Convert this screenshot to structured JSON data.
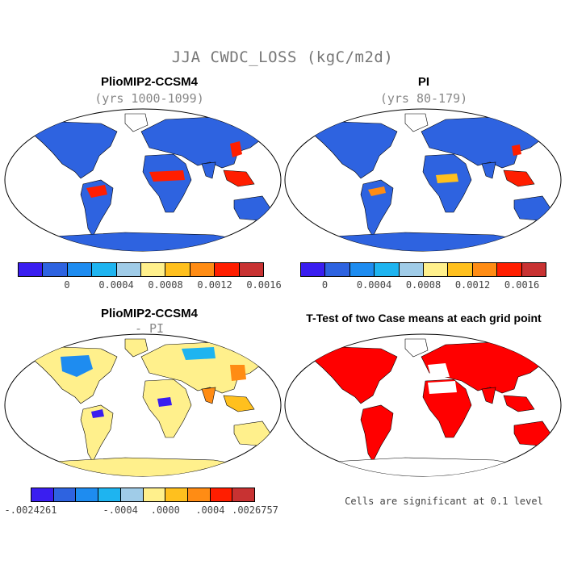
{
  "title": "JJA CWDC_LOSS (kgC/m2d)",
  "panels": [
    {
      "title": "PlioMIP2-CCSM4",
      "subtitle": "(yrs 1000-1099)"
    },
    {
      "title": "PI",
      "subtitle": "(yrs 80-179)"
    },
    {
      "title": "PlioMIP2-CCSM4",
      "subtitle": "- PI"
    },
    {
      "title": "T-Test of two Case means at each grid point",
      "subtitle": ""
    }
  ],
  "colorbar_top": {
    "colors": [
      "#3a1ef0",
      "#2e63e0",
      "#1e8cf0",
      "#1eb4f0",
      "#a0cce8",
      "#fff08c",
      "#ffc01e",
      "#ff8c14",
      "#ff1e00",
      "#c83232"
    ],
    "labels": [
      "0",
      "0.0004",
      "0.0008",
      "0.0012",
      "0.0016"
    ]
  },
  "colorbar_diff": {
    "colors": [
      "#3a1ef0",
      "#2e63e0",
      "#1e8cf0",
      "#1eb4f0",
      "#a0cce8",
      "#fff08c",
      "#ffc01e",
      "#ff8c14",
      "#ff1e00",
      "#c83232"
    ],
    "labels": [
      "-.0024261",
      "-.0004",
      ".0000",
      ".0004",
      ".0026757"
    ]
  },
  "significance_note": "Cells are significant at 0.1 level",
  "colors": {
    "land_blue": "#2e63e0",
    "land_yellow": "#fff08c",
    "sig_red": "#ff0000",
    "hot_red": "#ff1e00"
  }
}
